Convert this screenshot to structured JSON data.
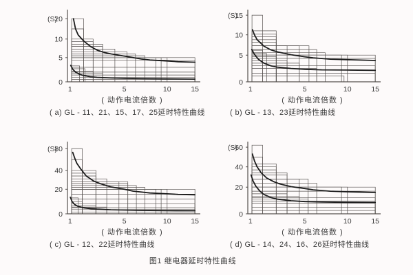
{
  "page": {
    "background_color": "#fdfafa",
    "text_color": "#3a3a3a",
    "grid_line_color": "#55504e",
    "curve_color": "#1c1c1c",
    "figure_caption": "图1 继电器延时特性曲线"
  },
  "chart_data": [
    {
      "id": "a",
      "type": "line",
      "title": "( a) GL - 11、21、15、17、25延时特性曲线",
      "ylabel": "(S)",
      "xlabel": "( 动作电流倍数 )",
      "xlim": [
        1,
        15
      ],
      "grid": "stepped tolerance rectangles",
      "legend": "none",
      "axes": {
        "xticks": [
          1,
          5,
          10,
          15
        ],
        "yticks": [
          0,
          5,
          10,
          20
        ],
        "x_anchors": [
          [
            1,
            0.02
          ],
          [
            5,
            0.44
          ],
          [
            10,
            0.77
          ],
          [
            15,
            0.985
          ]
        ],
        "y_anchors": [
          [
            0,
            0
          ],
          [
            5,
            0.345
          ],
          [
            10,
            0.61
          ],
          [
            20,
            0.9
          ]
        ],
        "x_start": 1.12
      },
      "step_rects": {
        "upper": [
          [
            20,
            2.0
          ],
          [
            15,
            2.0
          ],
          [
            10,
            2.7
          ],
          [
            9.3,
            2.7
          ],
          [
            8.6,
            3.4
          ],
          [
            8,
            3.4
          ],
          [
            7.3,
            4.3
          ],
          [
            6.6,
            5.3
          ],
          [
            6,
            6.3
          ],
          [
            5.5,
            7.4
          ],
          [
            5,
            8.7
          ],
          [
            5,
            9.3
          ],
          [
            5,
            10
          ],
          [
            5,
            15
          ],
          [
            4.5,
            15
          ]
        ],
        "lower": [
          [
            3.3,
            1.7
          ],
          [
            2.7,
            2.1
          ],
          [
            2.2,
            2.7
          ],
          [
            1.8,
            3.4
          ],
          [
            3,
            15
          ],
          [
            2,
            15
          ],
          [
            1.4,
            15
          ],
          [
            0.9,
            15
          ],
          [
            0.5,
            15
          ]
        ]
      },
      "series": [
        {
          "name": "upper_limit_curve",
          "points": [
            [
              1.25,
              20
            ],
            [
              1.4,
              15
            ],
            [
              1.6,
              12
            ],
            [
              2,
              9.5
            ],
            [
              2.5,
              8
            ],
            [
              3,
              7
            ],
            [
              3.5,
              6.4
            ],
            [
              4,
              6
            ],
            [
              5,
              5.4
            ],
            [
              6,
              5
            ],
            [
              7,
              4.7
            ],
            [
              8,
              4.5
            ],
            [
              10,
              4.3
            ],
            [
              12,
              4.15
            ],
            [
              15,
              4.05
            ]
          ]
        },
        {
          "name": "lower_limit_curve",
          "points": [
            [
              1.05,
              3.4
            ],
            [
              1.2,
              2.6
            ],
            [
              1.4,
              2
            ],
            [
              1.7,
              1.55
            ],
            [
              2,
              1.3
            ],
            [
              2.5,
              1.05
            ],
            [
              3,
              0.92
            ],
            [
              4,
              0.8
            ],
            [
              5,
              0.72
            ],
            [
              7,
              0.65
            ],
            [
              10,
              0.6
            ],
            [
              15,
              0.55
            ]
          ]
        }
      ]
    },
    {
      "id": "b",
      "type": "line",
      "title": "( b) GL - 13、23延时特性曲线",
      "ylabel": "(S)",
      "xlabel": "( 动作电流倍数 )",
      "xlim": [
        1,
        15
      ],
      "grid": "stepped tolerance rectangles",
      "legend": "none",
      "axes": {
        "xticks": [
          1,
          5,
          10,
          15
        ],
        "yticks": [
          0,
          5,
          10,
          15
        ],
        "x_anchors": [
          [
            1,
            0.02
          ],
          [
            5,
            0.44
          ],
          [
            10,
            0.77
          ],
          [
            15,
            0.985
          ]
        ],
        "y_anchors": [
          [
            0,
            0
          ],
          [
            5,
            0.38
          ],
          [
            10,
            0.67
          ],
          [
            15,
            0.95
          ]
        ],
        "x_start": 1.12
      },
      "step_rects": {
        "upper": [
          [
            15,
            1.9
          ],
          [
            11,
            2.9
          ],
          [
            10.2,
            2.9
          ],
          [
            9.5,
            2.9
          ],
          [
            8.8,
            2.9
          ],
          [
            8.2,
            2.9
          ],
          [
            7.3,
            3.7
          ],
          [
            7.3,
            4.6
          ],
          [
            7.3,
            5.5
          ],
          [
            6.4,
            6.4
          ],
          [
            5.6,
            7.4
          ],
          [
            5,
            9.3
          ],
          [
            5,
            10
          ],
          [
            5,
            15
          ],
          [
            4.4,
            15
          ]
        ],
        "lower": [
          [
            6.2,
            1.9
          ],
          [
            5.4,
            2.2
          ],
          [
            4.7,
            2.9
          ],
          [
            4,
            3.7
          ],
          [
            3.5,
            4.6
          ],
          [
            3,
            15
          ],
          [
            2.5,
            6.4
          ],
          [
            1.6,
            15
          ],
          [
            1.1,
            9.6
          ]
        ]
      },
      "series": [
        {
          "name": "upper_limit_curve",
          "points": [
            [
              1.15,
              11.3
            ],
            [
              1.3,
              10
            ],
            [
              1.5,
              8.8
            ],
            [
              2,
              7.2
            ],
            [
              2.5,
              6.3
            ],
            [
              3,
              5.8
            ],
            [
              4,
              5.1
            ],
            [
              5,
              4.7
            ],
            [
              6,
              4.5
            ],
            [
              8,
              4.25
            ],
            [
              10,
              4.15
            ],
            [
              15,
              4.0
            ]
          ]
        },
        {
          "name": "lower_limit_curve",
          "points": [
            [
              1.1,
              6.4
            ],
            [
              1.3,
              5.2
            ],
            [
              1.6,
              4.2
            ],
            [
              2,
              3.5
            ],
            [
              2.5,
              3.0
            ],
            [
              3,
              2.75
            ],
            [
              4,
              2.5
            ],
            [
              5,
              2.35
            ],
            [
              7,
              2.25
            ],
            [
              10,
              2.2
            ],
            [
              15,
              2.15
            ]
          ]
        }
      ]
    },
    {
      "id": "c",
      "type": "line",
      "title": "( c) GL - 12、22延时特性曲线",
      "ylabel": "(S)",
      "xlabel": "( 动作电流倍数 )",
      "xlim": [
        1,
        15
      ],
      "grid": "stepped tolerance rectangles",
      "legend": "none",
      "axes": {
        "xticks": [
          1,
          5,
          10,
          15
        ],
        "yticks": [
          0,
          20,
          40,
          80
        ],
        "x_anchors": [
          [
            1,
            0.02
          ],
          [
            5,
            0.44
          ],
          [
            10,
            0.77
          ],
          [
            15,
            0.985
          ]
        ],
        "y_anchors": [
          [
            0,
            0
          ],
          [
            20,
            0.35
          ],
          [
            40,
            0.62
          ],
          [
            80,
            0.93
          ]
        ],
        "x_start": 1.12
      },
      "step_rects": {
        "upper": [
          [
            80,
            1.9
          ],
          [
            60,
            1.9
          ],
          [
            40,
            2.9
          ],
          [
            37,
            2.9
          ],
          [
            34,
            2.9
          ],
          [
            31,
            3.7
          ],
          [
            28,
            4.6
          ],
          [
            28,
            5.4
          ],
          [
            26,
            5.4
          ],
          [
            24,
            6.4
          ],
          [
            22,
            7.4
          ],
          [
            20,
            8.7
          ],
          [
            20,
            9.3
          ],
          [
            20,
            10
          ],
          [
            20,
            15
          ],
          [
            16,
            15
          ]
        ],
        "lower": [
          [
            13,
            1.6
          ],
          [
            10,
            1.9
          ],
          [
            6.5,
            2.9
          ],
          [
            5.5,
            3.7
          ],
          [
            12,
            15
          ],
          [
            8,
            15
          ],
          [
            5,
            15
          ],
          [
            3.5,
            15
          ],
          [
            1.5,
            15
          ]
        ]
      },
      "series": [
        {
          "name": "upper_limit_curve",
          "points": [
            [
              1.2,
              73
            ],
            [
              1.35,
              62
            ],
            [
              1.5,
              53
            ],
            [
              1.8,
              42
            ],
            [
              2.2,
              34
            ],
            [
              2.7,
              29
            ],
            [
              3.2,
              26
            ],
            [
              4,
              22.5
            ],
            [
              5,
              20
            ],
            [
              6,
              18.5
            ],
            [
              8,
              17
            ],
            [
              10,
              16.3
            ],
            [
              12,
              15.8
            ],
            [
              15,
              15.5
            ]
          ]
        },
        {
          "name": "lower_limit_curve",
          "points": [
            [
              1.02,
              13.5
            ],
            [
              1.15,
              10
            ],
            [
              1.35,
              7.5
            ],
            [
              1.6,
              6
            ],
            [
              2,
              4.9
            ],
            [
              2.5,
              4.2
            ],
            [
              3,
              3.8
            ],
            [
              4,
              3.3
            ],
            [
              5,
              3.1
            ],
            [
              7,
              2.8
            ],
            [
              10,
              2.6
            ],
            [
              15,
              2.5
            ]
          ]
        }
      ]
    },
    {
      "id": "d",
      "type": "line",
      "title": "( d) GL - 14、24、16、26延时特性曲线",
      "ylabel": "(S)",
      "xlabel": "( 动作电流倍数 )",
      "xlim": [
        1,
        15
      ],
      "grid": "stepped tolerance rectangles",
      "legend": "none",
      "axes": {
        "xticks": [
          1,
          5,
          10,
          15
        ],
        "yticks": [
          0,
          20,
          40,
          60
        ],
        "x_anchors": [
          [
            1,
            0.02
          ],
          [
            5,
            0.44
          ],
          [
            10,
            0.77
          ],
          [
            15,
            0.985
          ]
        ],
        "y_anchors": [
          [
            0,
            0
          ],
          [
            20,
            0.38
          ],
          [
            40,
            0.67
          ],
          [
            60,
            0.95
          ]
        ],
        "x_start": 1.12
      },
      "step_rects": {
        "upper": [
          [
            62,
            1.9
          ],
          [
            50,
            1.9
          ],
          [
            43,
            2.9
          ],
          [
            40,
            2.9
          ],
          [
            37,
            2.9
          ],
          [
            34,
            3.7
          ],
          [
            32,
            3.7
          ],
          [
            28,
            4.6
          ],
          [
            28,
            5.4
          ],
          [
            24,
            6.4
          ],
          [
            20,
            9.3
          ],
          [
            20,
            10
          ],
          [
            20,
            15
          ],
          [
            17,
            15
          ]
        ],
        "lower": [
          [
            15,
            3.7
          ],
          [
            13,
            4.6
          ],
          [
            11,
            5.4
          ],
          [
            12,
            15
          ],
          [
            9.5,
            15
          ],
          [
            8,
            15
          ],
          [
            5,
            15
          ],
          [
            2.5,
            15
          ]
        ]
      },
      "series": [
        {
          "name": "upper_limit_curve",
          "points": [
            [
              1.15,
              53
            ],
            [
              1.3,
              46
            ],
            [
              1.5,
              40
            ],
            [
              1.8,
              34
            ],
            [
              2.2,
              29
            ],
            [
              2.7,
              25.5
            ],
            [
              3.2,
              23
            ],
            [
              4,
              20.5
            ],
            [
              5,
              19
            ],
            [
              6,
              18
            ],
            [
              8,
              17
            ],
            [
              10,
              16.5
            ],
            [
              15,
              16
            ]
          ]
        },
        {
          "name": "lower_limit_curve",
          "points": [
            [
              1.05,
              32
            ],
            [
              1.2,
              26
            ],
            [
              1.4,
              21
            ],
            [
              1.7,
              17
            ],
            [
              2,
              14.5
            ],
            [
              2.5,
              12.3
            ],
            [
              3,
              11
            ],
            [
              4,
              9.8
            ],
            [
              5,
              9.2
            ],
            [
              7,
              8.8
            ],
            [
              10,
              8.6
            ],
            [
              15,
              8.5
            ]
          ]
        }
      ]
    }
  ]
}
